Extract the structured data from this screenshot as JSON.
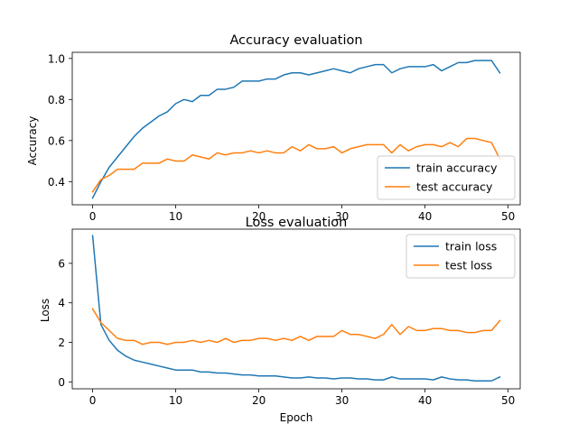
{
  "colors": {
    "train": "#1f77b4",
    "test": "#ff7f0e"
  },
  "chart_data": [
    {
      "type": "line",
      "title": "Accuracy evaluation",
      "xlabel": "",
      "ylabel": "Accuracy",
      "xlim": [
        -2.45,
        51.45
      ],
      "ylim": [
        0.287,
        1.03
      ],
      "xticks": [
        0,
        10,
        20,
        30,
        40,
        50
      ],
      "yticks": [
        0.4,
        0.6,
        0.8,
        1.0
      ],
      "ytick_decimals": 1,
      "grid": false,
      "legend": "lower-right",
      "x": [
        0,
        1,
        2,
        3,
        4,
        5,
        6,
        7,
        8,
        9,
        10,
        11,
        12,
        13,
        14,
        15,
        16,
        17,
        18,
        19,
        20,
        21,
        22,
        23,
        24,
        25,
        26,
        27,
        28,
        29,
        30,
        31,
        32,
        33,
        34,
        35,
        36,
        37,
        38,
        39,
        40,
        41,
        42,
        43,
        44,
        45,
        46,
        47,
        48,
        49
      ],
      "series": [
        {
          "name": "train accuracy",
          "color_key": "train",
          "values": [
            0.32,
            0.4,
            0.47,
            0.52,
            0.57,
            0.62,
            0.66,
            0.69,
            0.72,
            0.74,
            0.78,
            0.8,
            0.79,
            0.82,
            0.82,
            0.85,
            0.85,
            0.86,
            0.89,
            0.89,
            0.89,
            0.9,
            0.9,
            0.92,
            0.93,
            0.93,
            0.92,
            0.93,
            0.94,
            0.95,
            0.94,
            0.93,
            0.95,
            0.96,
            0.97,
            0.97,
            0.93,
            0.95,
            0.96,
            0.96,
            0.96,
            0.97,
            0.94,
            0.96,
            0.98,
            0.98,
            0.99,
            0.99,
            0.99,
            0.93
          ]
        },
        {
          "name": "test accuracy",
          "color_key": "test",
          "values": [
            0.35,
            0.41,
            0.43,
            0.46,
            0.46,
            0.46,
            0.49,
            0.49,
            0.49,
            0.51,
            0.5,
            0.5,
            0.53,
            0.52,
            0.51,
            0.54,
            0.53,
            0.54,
            0.54,
            0.55,
            0.54,
            0.55,
            0.54,
            0.54,
            0.57,
            0.55,
            0.58,
            0.56,
            0.56,
            0.57,
            0.54,
            0.56,
            0.57,
            0.58,
            0.58,
            0.58,
            0.54,
            0.58,
            0.55,
            0.57,
            0.58,
            0.58,
            0.57,
            0.59,
            0.57,
            0.61,
            0.61,
            0.6,
            0.59,
            0.51
          ]
        }
      ]
    },
    {
      "type": "line",
      "title": "Loss evaluation",
      "xlabel": "Epoch",
      "ylabel": "Loss",
      "xlim": [
        -2.45,
        51.45
      ],
      "ylim": [
        -0.35,
        7.73
      ],
      "xticks": [
        0,
        10,
        20,
        30,
        40,
        50
      ],
      "yticks": [
        0,
        2,
        4,
        6
      ],
      "ytick_decimals": 0,
      "grid": false,
      "legend": "upper-right",
      "x": [
        0,
        1,
        2,
        3,
        4,
        5,
        6,
        7,
        8,
        9,
        10,
        11,
        12,
        13,
        14,
        15,
        16,
        17,
        18,
        19,
        20,
        21,
        22,
        23,
        24,
        25,
        26,
        27,
        28,
        29,
        30,
        31,
        32,
        33,
        34,
        35,
        36,
        37,
        38,
        39,
        40,
        41,
        42,
        43,
        44,
        45,
        46,
        47,
        48,
        49
      ],
      "series": [
        {
          "name": "train loss",
          "color_key": "train",
          "values": [
            7.4,
            2.9,
            2.1,
            1.6,
            1.3,
            1.1,
            1.0,
            0.9,
            0.8,
            0.7,
            0.6,
            0.6,
            0.6,
            0.5,
            0.5,
            0.45,
            0.45,
            0.4,
            0.35,
            0.35,
            0.3,
            0.3,
            0.3,
            0.25,
            0.2,
            0.2,
            0.25,
            0.2,
            0.2,
            0.15,
            0.2,
            0.2,
            0.15,
            0.15,
            0.1,
            0.1,
            0.25,
            0.15,
            0.15,
            0.15,
            0.15,
            0.1,
            0.25,
            0.15,
            0.1,
            0.1,
            0.05,
            0.05,
            0.05,
            0.25
          ]
        },
        {
          "name": "test loss",
          "color_key": "test",
          "values": [
            3.7,
            3.0,
            2.6,
            2.2,
            2.1,
            2.1,
            1.9,
            2.0,
            2.0,
            1.9,
            2.0,
            2.0,
            2.1,
            2.0,
            2.1,
            2.0,
            2.2,
            2.0,
            2.1,
            2.1,
            2.2,
            2.2,
            2.1,
            2.2,
            2.1,
            2.3,
            2.1,
            2.3,
            2.3,
            2.3,
            2.6,
            2.4,
            2.4,
            2.3,
            2.2,
            2.4,
            2.9,
            2.4,
            2.8,
            2.6,
            2.6,
            2.7,
            2.7,
            2.6,
            2.6,
            2.5,
            2.5,
            2.6,
            2.6,
            3.1
          ]
        }
      ]
    }
  ]
}
